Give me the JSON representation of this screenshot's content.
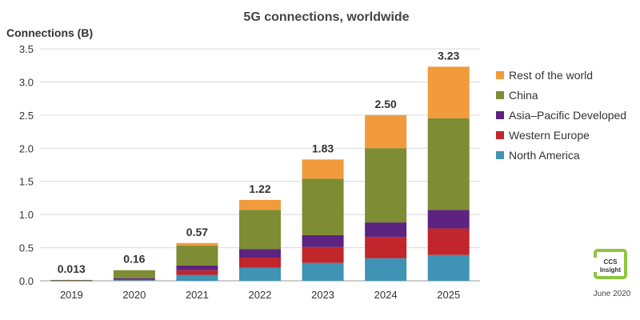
{
  "chart_data": {
    "type": "bar",
    "stacked": true,
    "title": "5G connections, worldwide",
    "ylabel": "Connections (B)",
    "xlabel": "",
    "ylim": [
      0,
      3.5
    ],
    "yticks": [
      "0.0",
      "0.5",
      "1.0",
      "1.5",
      "2.0",
      "2.5",
      "3.0",
      "3.5"
    ],
    "grid": "horizontal",
    "legend_position": "right",
    "categories": [
      "2019",
      "2020",
      "2021",
      "2022",
      "2023",
      "2024",
      "2025"
    ],
    "totals": [
      "0.013",
      "0.16",
      "0.57",
      "1.22",
      "1.83",
      "2.50",
      "3.23"
    ],
    "series": [
      {
        "name": "North America",
        "color": "#3f93b4",
        "values": [
          0.003,
          0.01,
          0.09,
          0.2,
          0.27,
          0.34,
          0.39
        ]
      },
      {
        "name": "Western Europe",
        "color": "#c0262c",
        "values": [
          0.002,
          0.01,
          0.07,
          0.15,
          0.24,
          0.32,
          0.4
        ]
      },
      {
        "name": "Asia–Pacific Developed",
        "color": "#5c2381",
        "values": [
          0.003,
          0.02,
          0.07,
          0.13,
          0.18,
          0.22,
          0.28
        ]
      },
      {
        "name": "China",
        "color": "#7e8c33",
        "values": [
          0.005,
          0.12,
          0.3,
          0.59,
          0.85,
          1.12,
          1.38
        ]
      },
      {
        "name": "Rest of the world",
        "color": "#f29b3c",
        "values": [
          0.0,
          0.0,
          0.04,
          0.15,
          0.29,
          0.5,
          0.78
        ]
      }
    ],
    "legend_order": [
      "Rest of the world",
      "China",
      "Asia–Pacific Developed",
      "Western Europe",
      "North America"
    ]
  },
  "logo": {
    "text_top": "CCS",
    "text_bottom": "Insight",
    "color": "#8dc63f"
  },
  "source_note": "June 2020"
}
